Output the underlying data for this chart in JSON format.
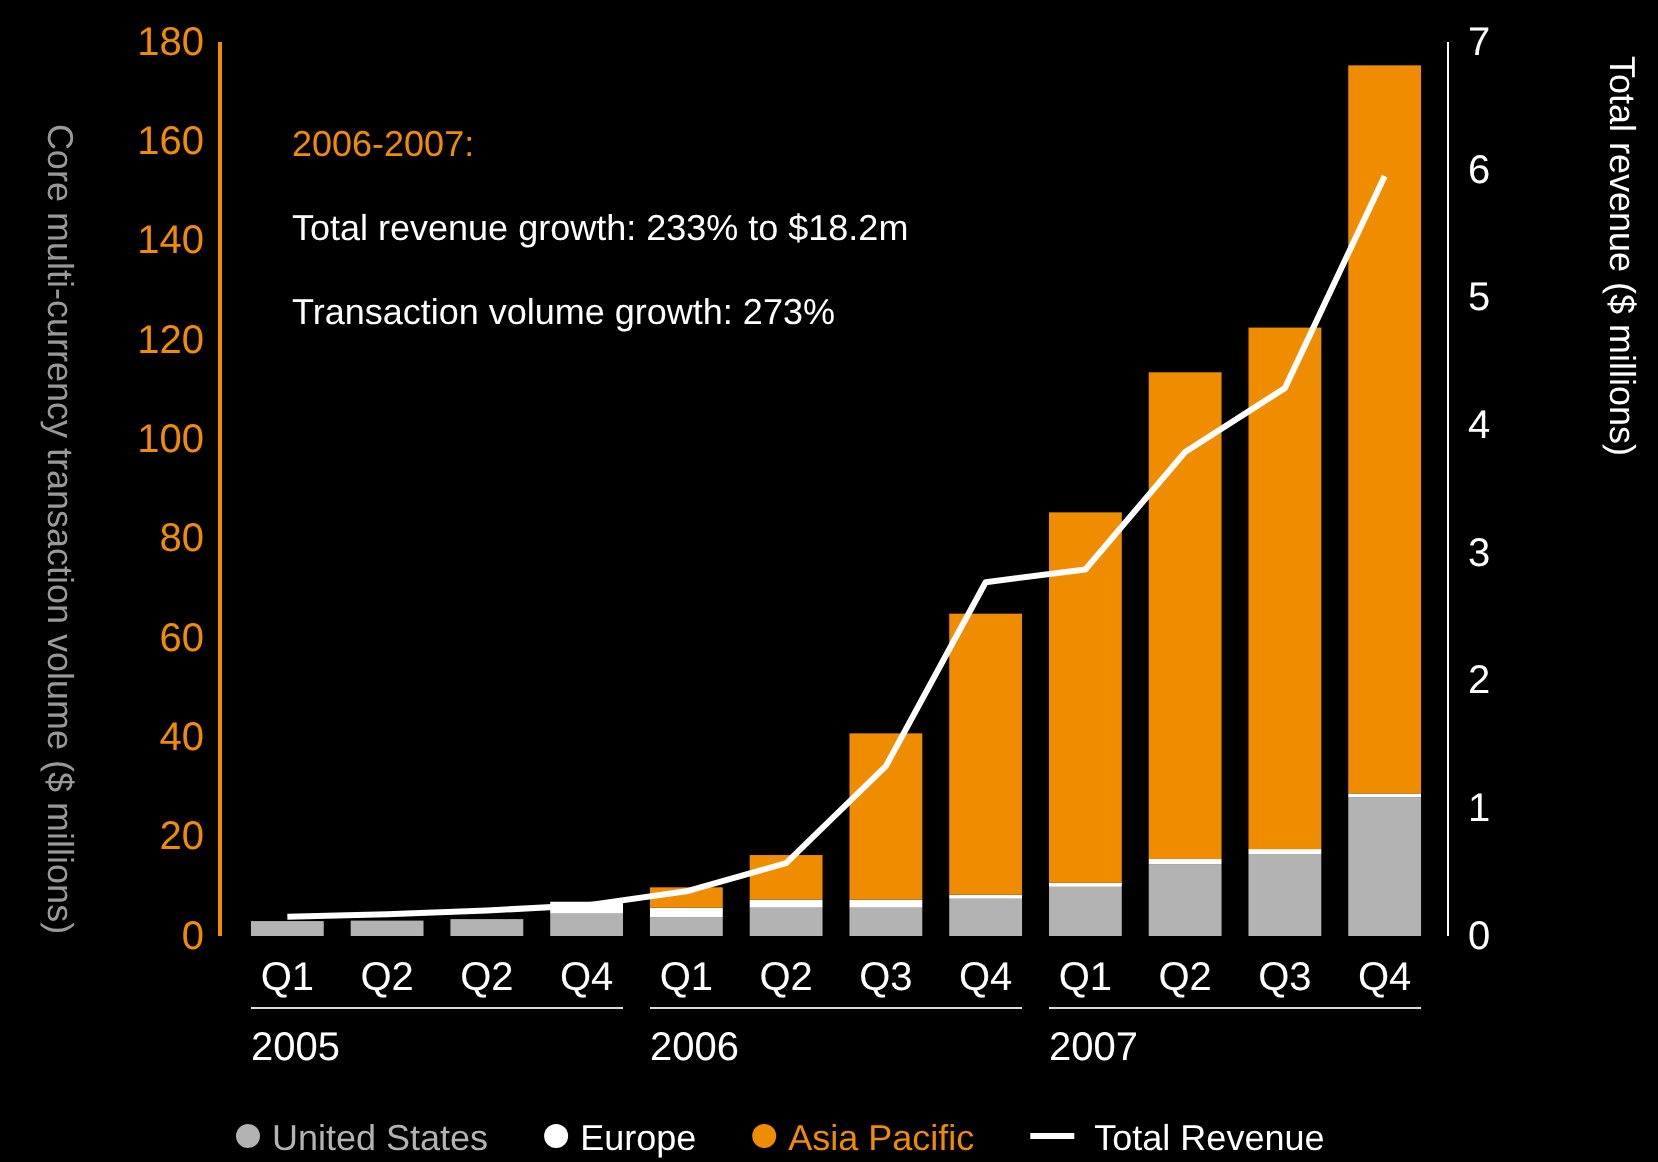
{
  "chart_data": {
    "type": "bar",
    "stacked": true,
    "title": "2006-2007:",
    "subtitle": "Total revenue growth: 233% to $18.2m",
    "annotations": [
      "Transaction volume growth: 273%",
      "2005",
      "2006",
      "2007"
    ],
    "ylabel": "Core multi-currency transaction volume ($ millions)",
    "y2label": "Total revenue ($ millions)",
    "categories": [
      "Q1",
      "Q2",
      "Q2",
      "Q4",
      "Q1",
      "Q2",
      "Q3",
      "Q4",
      "Q1",
      "Q2",
      "Q3",
      "Q4"
    ],
    "series": [
      {
        "name": "United States",
        "color": "#b3b3b3",
        "values": [
          3,
          3.1,
          3.4,
          4.5,
          3.8,
          5.7,
          5.7,
          7.5,
          9.9,
          14.4,
          16.4,
          27.9
        ]
      },
      {
        "name": "Europe",
        "color": "#ffffff",
        "values": [
          0,
          0,
          0,
          2.4,
          1.9,
          1.6,
          1.6,
          0.8,
          0.8,
          1.1,
          1.1,
          0.8
        ]
      },
      {
        "name": "Asia Pacific",
        "color": "#f08c00",
        "values": [
          0,
          0,
          0,
          0,
          4.1,
          9,
          33.5,
          56.6,
          74.6,
          98,
          105,
          146.6
        ]
      },
      {
        "name": "Total Revenue",
        "type": "line",
        "axis": "y2",
        "color": "#ffffff",
        "values": [
          0.15,
          0.17,
          0.2,
          0.24,
          0.35,
          0.57,
          1.33,
          2.77,
          2.87,
          3.79,
          4.29,
          5.95
        ]
      }
    ],
    "ylim": [
      0,
      180
    ],
    "yticks": [
      0,
      20,
      40,
      60,
      80,
      100,
      120,
      140,
      160,
      180
    ],
    "y2lim": [
      0,
      7
    ],
    "y2ticks": [
      0,
      1,
      2,
      3,
      4,
      5,
      6,
      7
    ],
    "grid": false,
    "legend": "bottom",
    "marker": "none",
    "line_style": "solid"
  }
}
